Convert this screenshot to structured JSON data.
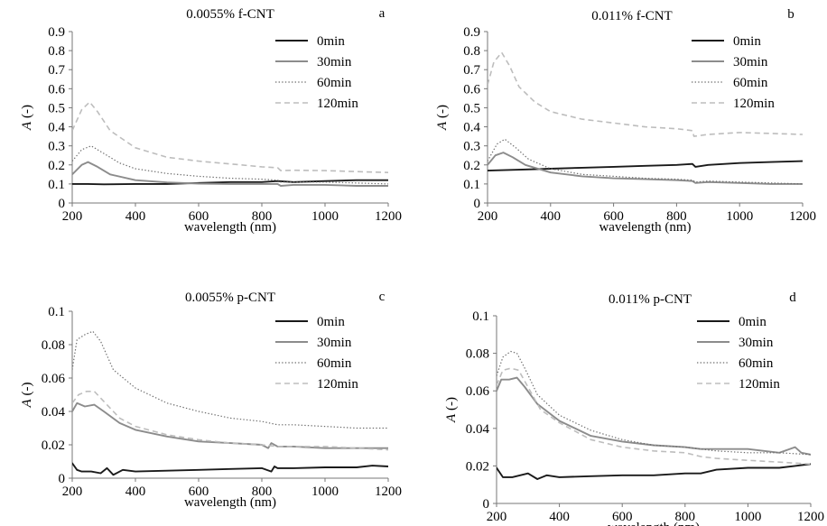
{
  "chart_data": [
    {
      "type": "line",
      "panel": "a",
      "title": "0.0055% f-CNT",
      "xlabel": "wavelength (nm)",
      "ylabel_italic": "A",
      "ylabel_unit": " (-)",
      "xlim": [
        200,
        1200
      ],
      "ylim": [
        0,
        0.9
      ],
      "xticks": [
        200,
        400,
        600,
        800,
        1000,
        1200
      ],
      "yticks": [
        0,
        0.1,
        0.2,
        0.3,
        0.4,
        0.5,
        0.6,
        0.7,
        0.8,
        0.9
      ],
      "ytick_labels": [
        "0",
        "0.1",
        "0.2",
        "0.3",
        "0.4",
        "0.5",
        "0.6",
        "0.7",
        "0.8",
        "0.9"
      ],
      "series": [
        {
          "name": "0min",
          "style": "solid-black",
          "x": [
            200,
            250,
            300,
            400,
            500,
            600,
            700,
            800,
            850,
            900,
            1000,
            1100,
            1200
          ],
          "y": [
            0.1,
            0.1,
            0.098,
            0.1,
            0.1,
            0.105,
            0.11,
            0.11,
            0.115,
            0.11,
            0.115,
            0.12,
            0.12
          ]
        },
        {
          "name": "30min",
          "style": "solid-gray",
          "x": [
            200,
            230,
            250,
            280,
            320,
            400,
            500,
            600,
            700,
            800,
            850,
            860,
            900,
            1000,
            1100,
            1200
          ],
          "y": [
            0.15,
            0.2,
            0.215,
            0.19,
            0.15,
            0.12,
            0.108,
            0.102,
            0.1,
            0.1,
            0.1,
            0.09,
            0.095,
            0.095,
            0.09,
            0.09
          ]
        },
        {
          "name": "60min",
          "style": "dotted-gray",
          "x": [
            200,
            230,
            260,
            300,
            350,
            400,
            500,
            600,
            700,
            800,
            850,
            860,
            900,
            1000,
            1100,
            1200
          ],
          "y": [
            0.22,
            0.28,
            0.3,
            0.26,
            0.21,
            0.18,
            0.155,
            0.14,
            0.13,
            0.125,
            0.12,
            0.11,
            0.11,
            0.11,
            0.105,
            0.1
          ]
        },
        {
          "name": "120min",
          "style": "dashed-lightgray",
          "x": [
            200,
            230,
            255,
            280,
            320,
            400,
            500,
            600,
            700,
            800,
            850,
            860,
            900,
            1000,
            1100,
            1200
          ],
          "y": [
            0.38,
            0.49,
            0.53,
            0.48,
            0.38,
            0.29,
            0.24,
            0.22,
            0.205,
            0.19,
            0.185,
            0.17,
            0.172,
            0.17,
            0.165,
            0.16
          ]
        }
      ]
    },
    {
      "type": "line",
      "panel": "b",
      "title": "0.011% f-CNT",
      "xlabel": "wavelength (nm)",
      "ylabel_italic": "A",
      "ylabel_unit": " (-)",
      "xlim": [
        200,
        1200
      ],
      "ylim": [
        0,
        0.9
      ],
      "xticks": [
        200,
        400,
        600,
        800,
        1000,
        1200
      ],
      "yticks": [
        0,
        0.1,
        0.2,
        0.3,
        0.4,
        0.5,
        0.6,
        0.7,
        0.8,
        0.9
      ],
      "ytick_labels": [
        "0",
        "0.1",
        "0.2",
        "0.3",
        "0.4",
        "0.5",
        "0.6",
        "0.7",
        "0.8",
        "0.9"
      ],
      "series": [
        {
          "name": "0min",
          "style": "solid-black",
          "x": [
            200,
            300,
            400,
            500,
            600,
            700,
            800,
            850,
            860,
            900,
            1000,
            1100,
            1200
          ],
          "y": [
            0.17,
            0.175,
            0.18,
            0.185,
            0.19,
            0.195,
            0.2,
            0.205,
            0.19,
            0.2,
            0.21,
            0.215,
            0.22
          ]
        },
        {
          "name": "30min",
          "style": "solid-gray",
          "x": [
            200,
            225,
            250,
            280,
            320,
            400,
            500,
            600,
            700,
            800,
            850,
            860,
            900,
            1000,
            1100,
            1200
          ],
          "y": [
            0.2,
            0.25,
            0.265,
            0.24,
            0.2,
            0.16,
            0.14,
            0.13,
            0.125,
            0.12,
            0.115,
            0.105,
            0.11,
            0.105,
            0.1,
            0.1
          ]
        },
        {
          "name": "60min",
          "style": "dotted-gray",
          "x": [
            200,
            230,
            255,
            290,
            330,
            400,
            500,
            600,
            700,
            800,
            850,
            860,
            900,
            1000,
            1100,
            1200
          ],
          "y": [
            0.22,
            0.31,
            0.335,
            0.29,
            0.23,
            0.18,
            0.15,
            0.14,
            0.13,
            0.125,
            0.12,
            0.11,
            0.115,
            0.11,
            0.105,
            0.1
          ]
        },
        {
          "name": "120min",
          "style": "dashed-lightgray",
          "x": [
            200,
            220,
            245,
            270,
            300,
            350,
            400,
            500,
            600,
            700,
            800,
            850,
            855,
            900,
            1000,
            1100,
            1200
          ],
          "y": [
            0.62,
            0.74,
            0.79,
            0.72,
            0.61,
            0.53,
            0.48,
            0.44,
            0.42,
            0.4,
            0.39,
            0.38,
            0.35,
            0.36,
            0.37,
            0.365,
            0.36
          ]
        }
      ]
    },
    {
      "type": "line",
      "panel": "c",
      "title": "0.0055% p-CNT",
      "xlabel": "wavelength (nm)",
      "ylabel_italic": "A",
      "ylabel_unit": " (-)",
      "xlim": [
        200,
        1200
      ],
      "ylim": [
        0,
        0.1
      ],
      "xticks": [
        200,
        400,
        600,
        800,
        1000,
        1200
      ],
      "yticks": [
        0,
        0.02,
        0.04,
        0.06,
        0.08,
        0.1
      ],
      "ytick_labels": [
        "0",
        "0.02",
        "0.04",
        "0.06",
        "0.08",
        "0.1"
      ],
      "series": [
        {
          "name": "0min",
          "style": "solid-black",
          "x": [
            200,
            215,
            230,
            260,
            290,
            310,
            330,
            360,
            400,
            500,
            600,
            700,
            800,
            830,
            840,
            850,
            900,
            1000,
            1100,
            1150,
            1200
          ],
          "y": [
            0.009,
            0.005,
            0.004,
            0.004,
            0.003,
            0.006,
            0.002,
            0.005,
            0.004,
            0.0045,
            0.005,
            0.0055,
            0.006,
            0.004,
            0.007,
            0.006,
            0.006,
            0.0065,
            0.0065,
            0.0075,
            0.007
          ]
        },
        {
          "name": "30min",
          "style": "solid-gray",
          "x": [
            200,
            215,
            240,
            270,
            300,
            350,
            400,
            500,
            600,
            700,
            800,
            820,
            830,
            850,
            900,
            1000,
            1100,
            1200
          ],
          "y": [
            0.04,
            0.045,
            0.043,
            0.044,
            0.04,
            0.033,
            0.029,
            0.025,
            0.022,
            0.021,
            0.02,
            0.018,
            0.021,
            0.019,
            0.019,
            0.018,
            0.018,
            0.018
          ]
        },
        {
          "name": "60min",
          "style": "dotted-gray",
          "x": [
            200,
            215,
            240,
            265,
            290,
            330,
            400,
            500,
            600,
            700,
            800,
            850,
            900,
            1000,
            1100,
            1200
          ],
          "y": [
            0.065,
            0.083,
            0.086,
            0.088,
            0.082,
            0.065,
            0.054,
            0.045,
            0.04,
            0.036,
            0.034,
            0.032,
            0.032,
            0.031,
            0.03,
            0.03
          ]
        },
        {
          "name": "120min",
          "style": "dashed-lightgray",
          "x": [
            200,
            220,
            245,
            270,
            300,
            350,
            400,
            500,
            600,
            700,
            800,
            850,
            900,
            1000,
            1100,
            1200
          ],
          "y": [
            0.045,
            0.05,
            0.052,
            0.052,
            0.046,
            0.036,
            0.031,
            0.026,
            0.023,
            0.021,
            0.02,
            0.019,
            0.019,
            0.019,
            0.018,
            0.017
          ]
        }
      ]
    },
    {
      "type": "line",
      "panel": "d",
      "title": "0.011% p-CNT",
      "xlabel": "wavelength (nm)",
      "ylabel_italic": "A",
      "ylabel_unit": " (-)",
      "xlim": [
        200,
        1200
      ],
      "ylim": [
        0,
        0.1
      ],
      "xticks": [
        200,
        400,
        600,
        800,
        1000,
        1200
      ],
      "yticks": [
        0,
        0.02,
        0.04,
        0.06,
        0.08,
        0.1
      ],
      "ytick_labels": [
        "0",
        "0.02",
        "0.04",
        "0.06",
        "0.08",
        "0.1"
      ],
      "series": [
        {
          "name": "0min",
          "style": "solid-black",
          "x": [
            200,
            220,
            250,
            300,
            330,
            360,
            400,
            500,
            600,
            700,
            800,
            850,
            900,
            1000,
            1100,
            1150,
            1200
          ],
          "y": [
            0.019,
            0.014,
            0.014,
            0.016,
            0.013,
            0.015,
            0.014,
            0.0145,
            0.015,
            0.015,
            0.016,
            0.016,
            0.018,
            0.019,
            0.019,
            0.02,
            0.021
          ]
        },
        {
          "name": "30min",
          "style": "solid-gray",
          "x": [
            200,
            215,
            240,
            265,
            290,
            330,
            400,
            500,
            600,
            700,
            800,
            850,
            900,
            1000,
            1100,
            1150,
            1170,
            1200
          ],
          "y": [
            0.06,
            0.066,
            0.066,
            0.067,
            0.062,
            0.053,
            0.044,
            0.036,
            0.033,
            0.031,
            0.03,
            0.029,
            0.029,
            0.029,
            0.027,
            0.03,
            0.027,
            0.026
          ]
        },
        {
          "name": "60min",
          "style": "dotted-gray",
          "x": [
            200,
            220,
            245,
            265,
            290,
            330,
            400,
            500,
            600,
            700,
            800,
            850,
            900,
            1000,
            1100,
            1200
          ],
          "y": [
            0.068,
            0.078,
            0.081,
            0.08,
            0.072,
            0.058,
            0.047,
            0.039,
            0.034,
            0.031,
            0.03,
            0.029,
            0.028,
            0.027,
            0.027,
            0.026
          ]
        },
        {
          "name": "120min",
          "style": "dashed-lightgray",
          "x": [
            200,
            220,
            245,
            270,
            300,
            340,
            400,
            500,
            600,
            700,
            800,
            850,
            900,
            1000,
            1100,
            1200
          ],
          "y": [
            0.063,
            0.071,
            0.072,
            0.071,
            0.062,
            0.05,
            0.043,
            0.034,
            0.03,
            0.028,
            0.027,
            0.025,
            0.024,
            0.023,
            0.022,
            0.021
          ]
        }
      ]
    }
  ],
  "styles": {
    "solid-black": {
      "color": "#1a1a1a",
      "dash": "",
      "width": 1.9
    },
    "solid-gray": {
      "color": "#8c8c8c",
      "dash": "",
      "width": 1.9
    },
    "dotted-gray": {
      "color": "#6e6e6e",
      "dash": "1.4,2.2",
      "width": 1.2
    },
    "dashed-lightgray": {
      "color": "#bdbdbd",
      "dash": "6,4",
      "width": 1.6
    }
  }
}
